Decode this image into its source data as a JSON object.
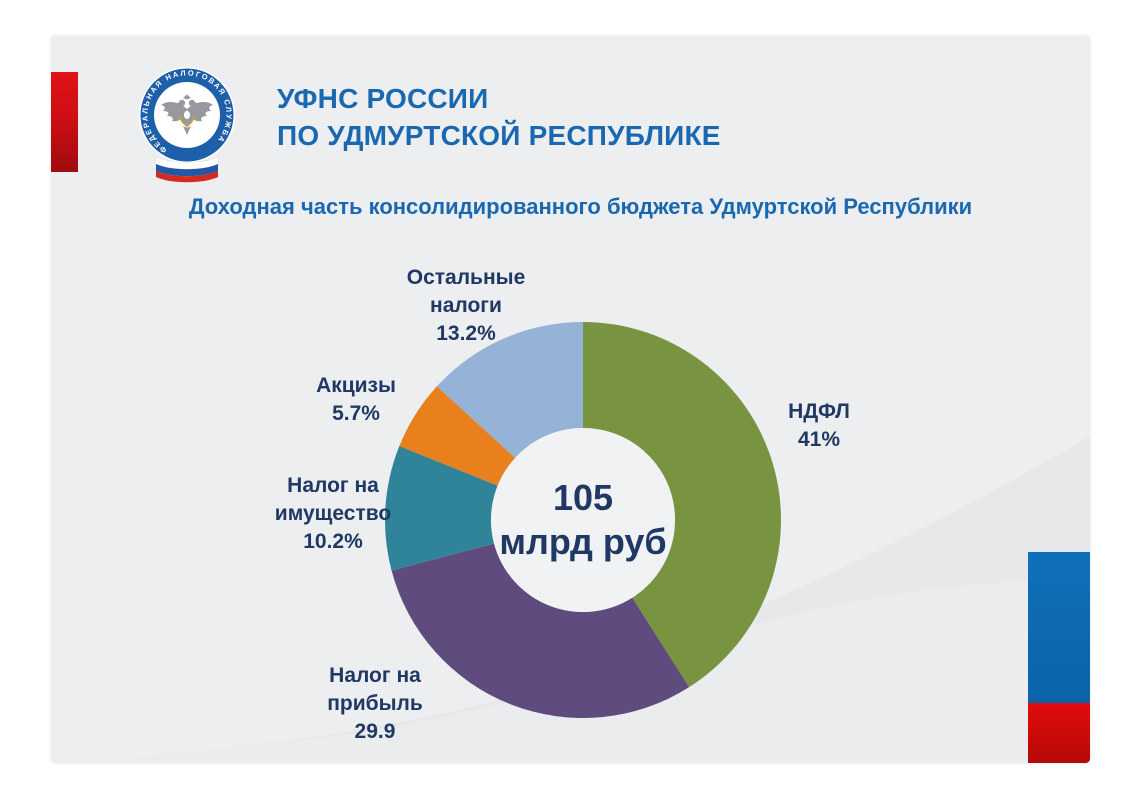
{
  "slide": {
    "header": {
      "org_name_line1": "УФНС РОССИИ",
      "org_name_line2": "ПО УДМУРТСКОЙ РЕСПУБЛИКЕ",
      "logo_ring_text": "ФЕДЕРАЛЬНАЯ НАЛОГОВАЯ СЛУЖБА"
    },
    "title": "Доходная часть консолидированного бюджета Удмуртской Республики"
  },
  "chart_data": {
    "type": "pie",
    "subtype": "donut",
    "title": "Доходная часть консолидированного бюджета Удмуртской Республики",
    "center_value": "105",
    "center_unit": "млрд руб",
    "start_angle_deg": 0,
    "direction": "clockwise",
    "donut_hole_ratio": 0.46,
    "legend_position": "around-labels",
    "segments": [
      {
        "label": "НДФЛ",
        "value": 41,
        "value_text": "41%",
        "color": "#789440",
        "label_lines": [
          "НДФЛ",
          "41%"
        ]
      },
      {
        "label": "Налог на прибыль",
        "value": 29.9,
        "value_text": "29.9",
        "color": "#604b7e",
        "label_lines": [
          "Налог на",
          "прибыль",
          "29.9"
        ]
      },
      {
        "label": "Налог на имущество",
        "value": 10.2,
        "value_text": "10.2%",
        "color": "#30849a",
        "label_lines": [
          "Налог на",
          "имущество",
          "10.2%"
        ]
      },
      {
        "label": "Акцизы",
        "value": 5.7,
        "value_text": "5.7%",
        "color": "#e8801e",
        "label_lines": [
          "Акцизы",
          "5.7%"
        ]
      },
      {
        "label": "Остальные налоги",
        "value": 13.2,
        "value_text": "13.2%",
        "color": "#95b3d7",
        "label_lines": [
          "Остальные",
          "налоги",
          "13.2%"
        ]
      }
    ]
  },
  "colors": {
    "brand_blue": "#1a68b0",
    "text_navy": "#1f3864",
    "slide_background": "#eceef0",
    "left_accent_red": "#cf0e14",
    "corner_bar_blue": "#0f70ba",
    "corner_bar_red": "#e20c0c",
    "logo_ring_blue": "#1d5fa8",
    "flag_white": "#ffffff",
    "flag_blue": "#2457a5",
    "flag_red": "#d52b1e"
  }
}
